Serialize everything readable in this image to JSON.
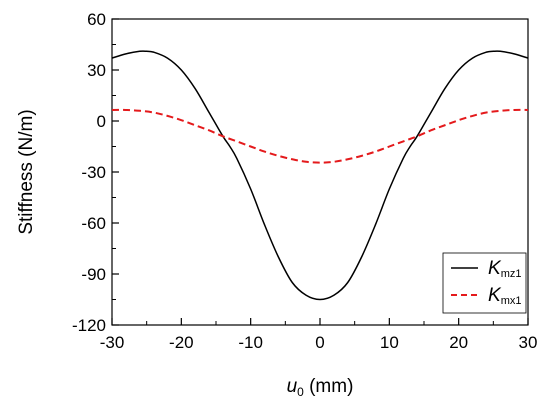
{
  "chart_data": {
    "type": "line",
    "xlabel": {
      "symbol": "u",
      "subscript": "0",
      "unit": " (mm)"
    },
    "ylabel": "Stiffness (N/m)",
    "xlim": [
      -30,
      30
    ],
    "ylim": [
      -120,
      60
    ],
    "xticks": [
      -30,
      -20,
      -10,
      0,
      10,
      20,
      30
    ],
    "yticks": [
      -120,
      -90,
      -60,
      -30,
      0,
      30,
      60
    ],
    "xtick_labels": [
      "-30",
      "-20",
      "-10",
      "0",
      "10",
      "20",
      "30"
    ],
    "ytick_labels": [
      "-120",
      "-90",
      "-60",
      "-30",
      "0",
      "30",
      "60"
    ],
    "grid": false,
    "legend_position": "bottom-right",
    "series": [
      {
        "name": {
          "symbol": "K",
          "subscript": "mz1"
        },
        "color": "#000000",
        "style": "solid",
        "x": [
          -30,
          -28,
          -26,
          -25,
          -24,
          -22,
          -20,
          -18,
          -16,
          -14,
          -13,
          -12,
          -10,
          -8,
          -6,
          -4,
          -2,
          0,
          2,
          4,
          6,
          8,
          10,
          12,
          13,
          14,
          16,
          18,
          20,
          22,
          24,
          25,
          26,
          28,
          30
        ],
        "y": [
          37,
          39.5,
          41,
          41,
          40.5,
          37,
          30,
          19,
          5,
          -9,
          -15,
          -22,
          -40,
          -61,
          -80,
          -95,
          -102.5,
          -105,
          -102.5,
          -95,
          -80,
          -61,
          -40,
          -22,
          -15,
          -9,
          5,
          19,
          30,
          37,
          40.5,
          41,
          41,
          39.5,
          37
        ]
      },
      {
        "name": {
          "symbol": "K",
          "subscript": "mx1"
        },
        "color": "#e41a1c",
        "style": "dashed",
        "x": [
          -30,
          -28,
          -26,
          -24,
          -22,
          -20,
          -18,
          -16,
          -14,
          -12,
          -10,
          -8,
          -6,
          -4,
          -2,
          0,
          2,
          4,
          6,
          8,
          10,
          12,
          14,
          16,
          18,
          20,
          22,
          24,
          26,
          28,
          30
        ],
        "y": [
          6.5,
          6.5,
          6,
          5,
          3,
          0.5,
          -2.5,
          -5.5,
          -9,
          -12,
          -15,
          -18,
          -20.5,
          -22.5,
          -24,
          -24.5,
          -24,
          -22.5,
          -20.5,
          -18,
          -15,
          -12,
          -9,
          -5.5,
          -2.5,
          0.5,
          3,
          5,
          6,
          6.5,
          6.5
        ]
      }
    ]
  }
}
